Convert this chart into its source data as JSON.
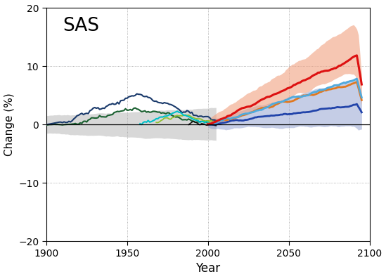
{
  "title": "SAS",
  "xlabel": "Year",
  "ylabel": "Change (%)",
  "xlim": [
    1900,
    2100
  ],
  "ylim": [
    -20,
    20
  ],
  "yticks": [
    -20,
    -10,
    0,
    10,
    20
  ],
  "xticks": [
    1900,
    1950,
    2000,
    2050,
    2100
  ],
  "colors": {
    "grey_shade": "#aaaaaa",
    "dark_navy": "#1a3a6b",
    "dark_green": "#1a6030",
    "cyan": "#00c0c8",
    "yellow_green": "#90c030",
    "black": "#111111",
    "red": "#dd1111",
    "orange": "#e07820",
    "light_blue": "#50aadd",
    "navy_future": "#2244aa",
    "red_band": "#f0a080",
    "blue_band": "#8090c8"
  },
  "figsize": [
    5.49,
    3.97
  ],
  "dpi": 100
}
